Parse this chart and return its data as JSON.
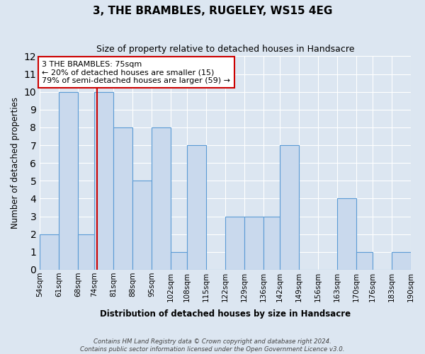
{
  "title": "3, THE BRAMBLES, RUGELEY, WS15 4EG",
  "subtitle": "Size of property relative to detached houses in Handsacre",
  "xlabel": "Distribution of detached houses by size in Handsacre",
  "ylabel": "Number of detached properties",
  "bin_labels": [
    "54sqm",
    "61sqm",
    "68sqm",
    "74sqm",
    "81sqm",
    "88sqm",
    "95sqm",
    "102sqm",
    "108sqm",
    "115sqm",
    "122sqm",
    "129sqm",
    "136sqm",
    "142sqm",
    "149sqm",
    "156sqm",
    "163sqm",
    "170sqm",
    "176sqm",
    "183sqm",
    "190sqm"
  ],
  "bin_edges": [
    54,
    61,
    68,
    74,
    81,
    88,
    95,
    102,
    108,
    115,
    122,
    129,
    136,
    142,
    149,
    156,
    163,
    170,
    176,
    183,
    190
  ],
  "bar_heights": [
    2,
    10,
    2,
    10,
    8,
    5,
    8,
    1,
    7,
    0,
    3,
    3,
    3,
    7,
    0,
    0,
    4,
    1,
    0,
    1
  ],
  "bar_color": "#c9d9ed",
  "bar_edge_color": "#5b9bd5",
  "vline_x": 75,
  "vline_color": "#cc0000",
  "ylim": [
    0,
    12
  ],
  "yticks": [
    0,
    1,
    2,
    3,
    4,
    5,
    6,
    7,
    8,
    9,
    10,
    11,
    12
  ],
  "annotation_text_line1": "3 THE BRAMBLES: 75sqm",
  "annotation_text_line2": "← 20% of detached houses are smaller (15)",
  "annotation_text_line3": "79% of semi-detached houses are larger (59) →",
  "annotation_box_facecolor": "#ffffff",
  "annotation_box_edgecolor": "#cc0000",
  "background_color": "#dce6f1",
  "grid_color": "#ffffff",
  "footer_line1": "Contains HM Land Registry data © Crown copyright and database right 2024.",
  "footer_line2": "Contains public sector information licensed under the Open Government Licence v3.0."
}
